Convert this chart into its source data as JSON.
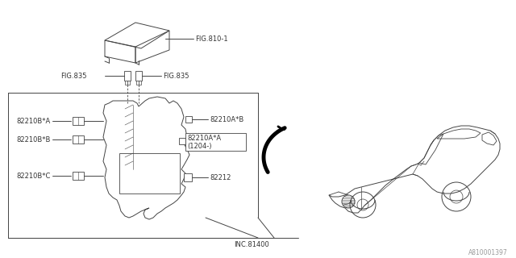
{
  "bg_color": "#ffffff",
  "line_color": "#444444",
  "text_color": "#333333",
  "fig_width": 6.4,
  "fig_height": 3.2,
  "dpi": 100,
  "watermark": "A810001397",
  "labels": {
    "fig810_1": "FIG.810-1",
    "fig835_left": "FIG.835",
    "fig835_right": "FIG.835",
    "part_82210A_B": "82210A*B",
    "part_82210A_A": "82210A*A",
    "part_date": "(1204-)",
    "part_82210B_A": "82210B*A",
    "part_82210B_B": "82210B*B",
    "part_82210B_C": "82210B*C",
    "part_82212": "82212",
    "inc_81400": "INC.81400"
  },
  "font_size": 6.0
}
